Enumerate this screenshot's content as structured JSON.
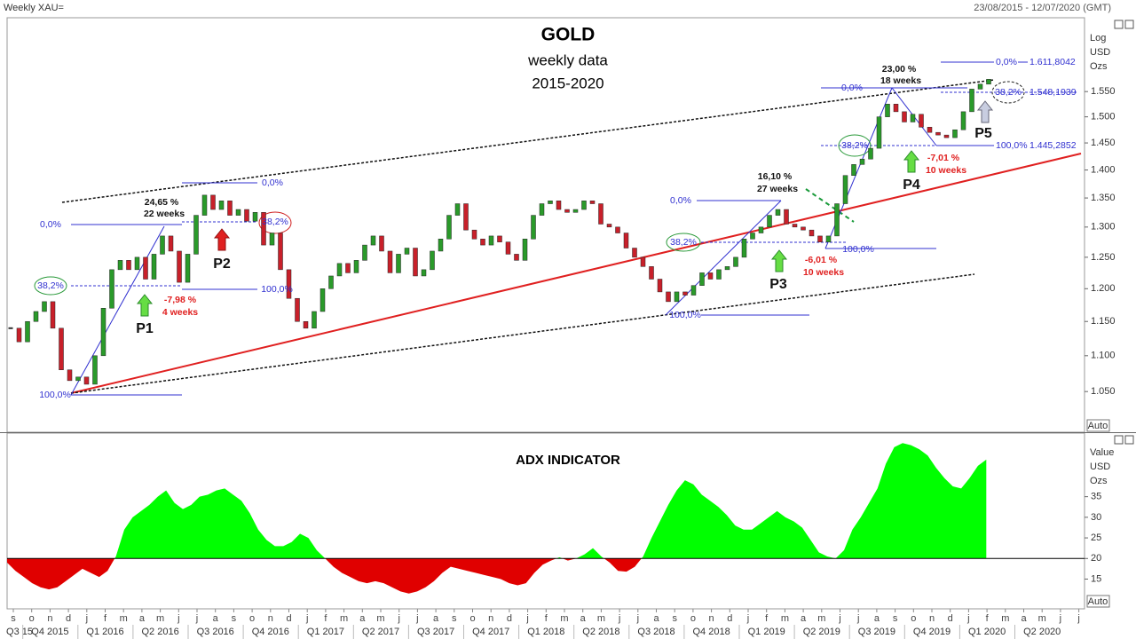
{
  "header": {
    "instrument": "Weekly XAU=",
    "range": "23/08/2015 - 12/07/2020 (GMT)"
  },
  "chart_data": [
    {
      "type": "candlestick",
      "title": "GOLD",
      "subtitle": [
        "weekly data",
        "2015-2020"
      ],
      "y_axis_label": [
        "Log",
        "USD",
        "Ozs"
      ],
      "log_scale": true,
      "scale_mode": "Auto",
      "up_color": "#2a9a2a",
      "down_color": "#c8202a",
      "close": [
        1140,
        1120,
        1150,
        1165,
        1180,
        1140,
        1080,
        1065,
        1070,
        1060,
        1100,
        1170,
        1230,
        1245,
        1230,
        1250,
        1215,
        1255,
        1285,
        1260,
        1210,
        1255,
        1320,
        1355,
        1330,
        1345,
        1320,
        1330,
        1310,
        1325,
        1270,
        1290,
        1230,
        1185,
        1150,
        1140,
        1165,
        1200,
        1220,
        1240,
        1225,
        1245,
        1270,
        1285,
        1260,
        1225,
        1255,
        1265,
        1220,
        1230,
        1260,
        1280,
        1320,
        1340,
        1295,
        1280,
        1270,
        1285,
        1275,
        1255,
        1245,
        1280,
        1320,
        1340,
        1345,
        1330,
        1325,
        1330,
        1345,
        1340,
        1305,
        1300,
        1290,
        1265,
        1250,
        1235,
        1215,
        1195,
        1180,
        1195,
        1190,
        1205,
        1225,
        1215,
        1230,
        1235,
        1250,
        1280,
        1290,
        1300,
        1320,
        1330,
        1305,
        1300,
        1295,
        1285,
        1275,
        1285,
        1340,
        1390,
        1410,
        1420,
        1440,
        1500,
        1525,
        1510,
        1490,
        1505,
        1480,
        1470,
        1465,
        1460,
        1475,
        1510,
        1555,
        1565,
        1575
      ],
      "ylim": [
        996,
        1702
      ],
      "yticks": [
        {
          "value": 1050,
          "label": "1.050"
        },
        {
          "value": 1100,
          "label": "1.100"
        },
        {
          "value": 1150,
          "label": "1.150"
        },
        {
          "value": 1200,
          "label": "1.200"
        },
        {
          "value": 1250,
          "label": "1.250"
        },
        {
          "value": 1300,
          "label": "1.300"
        },
        {
          "value": 1350,
          "label": "1.350"
        },
        {
          "value": 1400,
          "label": "1.400"
        },
        {
          "value": 1450,
          "label": "1.450"
        },
        {
          "value": 1500,
          "label": "1.500"
        },
        {
          "value": 1550,
          "label": "1.550"
        }
      ],
      "annotations": [
        "38,2%",
        "0,0%",
        "100,0%",
        "24,65 %",
        "22 weeks",
        "-7,98 %",
        "4 weeks",
        "P1",
        "P2",
        "0,0%",
        "38,2%",
        "100,0%",
        "0,0%",
        "38,2%",
        "100,0%",
        "16,10 %",
        "27 weeks",
        "P3",
        "-6,01 %",
        "10 weeks",
        "100,0%",
        "0,0%",
        "23,00 %",
        "18 weeks",
        "38,2%",
        "P4",
        "-7,01 %",
        "10 weeks",
        "100,0%",
        "1.445,2852",
        "0,0%",
        "1.611,8042",
        "38,2%",
        "1.548,1939",
        "P5"
      ]
    },
    {
      "type": "area",
      "title": "ADX INDICATOR",
      "y_axis_label": [
        "Value",
        "USD",
        "Ozs"
      ],
      "scale_mode": "Auto",
      "baseline": 20,
      "above_color": "#00ff00",
      "below_color": "#e00000",
      "values": [
        19,
        17,
        15.5,
        14,
        13,
        12.5,
        13,
        14.5,
        16,
        17.5,
        16.5,
        15.5,
        17,
        20.5,
        27,
        30,
        31.5,
        33,
        35,
        36.5,
        33.5,
        32,
        33,
        35,
        35.5,
        36.5,
        37,
        35.5,
        34,
        31,
        27,
        24.5,
        23,
        23,
        24,
        26,
        25,
        22,
        20,
        18,
        16.5,
        15.5,
        14.5,
        14,
        14.5,
        14,
        13,
        12,
        11.5,
        12,
        13,
        14.5,
        16.5,
        18,
        17.5,
        17,
        16.5,
        16,
        15.5,
        15,
        14,
        13.5,
        14,
        16.5,
        18.5,
        19.5,
        20.3,
        19.5,
        20,
        21,
        22.5,
        20.5,
        19,
        17,
        16.8,
        18,
        20.5,
        25,
        29,
        33,
        36.5,
        39,
        38,
        35.5,
        34,
        32.5,
        30.5,
        28,
        27,
        27,
        28.5,
        30,
        31.5,
        30,
        29,
        27.5,
        24.5,
        21.5,
        20.5,
        20,
        22,
        27,
        30,
        33.5,
        37,
        43,
        47,
        48,
        47.5,
        46.5,
        45,
        42,
        39.5,
        37.5,
        37,
        39.5,
        42.5,
        44
      ],
      "ylim": [
        8,
        50
      ],
      "yticks": [
        15,
        20,
        25,
        30,
        35
      ],
      "month_labels": [
        "s",
        "o",
        "n",
        "d",
        "j",
        "f",
        "m",
        "a",
        "m",
        "j",
        "j",
        "a",
        "s",
        "o",
        "n",
        "d",
        "j",
        "f",
        "m",
        "a",
        "m",
        "j",
        "j",
        "a",
        "s",
        "o",
        "n",
        "d",
        "j",
        "f",
        "m",
        "a",
        "m",
        "j",
        "j",
        "a",
        "s",
        "o",
        "n",
        "d",
        "j",
        "f",
        "m",
        "a",
        "m",
        "j",
        "j",
        "a",
        "s",
        "o",
        "n",
        "d",
        "j",
        "f",
        "m",
        "a",
        "m",
        "j",
        "j"
      ],
      "quarter_labels": [
        "Q3 15",
        "Q4 2015",
        "Q1 2016",
        "Q2 2016",
        "Q3 2016",
        "Q4 2016",
        "Q1 2017",
        "Q2 2017",
        "Q3 2017",
        "Q4 2017",
        "Q1 2018",
        "Q2 2018",
        "Q3 2018",
        "Q4 2018",
        "Q1 2019",
        "Q2 2019",
        "Q3 2019",
        "Q4 2019",
        "Q1 2020",
        "Q2 2020"
      ]
    }
  ]
}
